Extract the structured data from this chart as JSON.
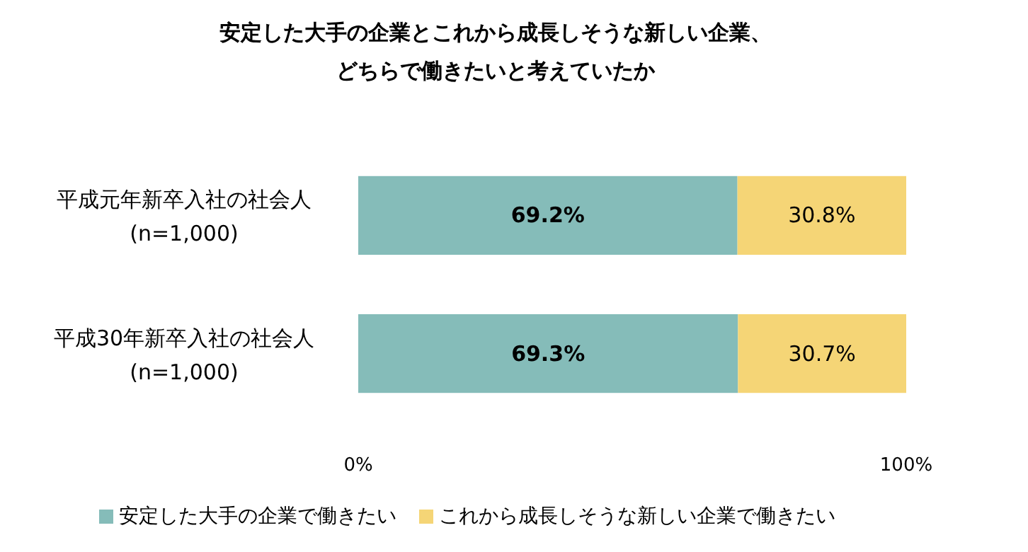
{
  "chart_data": {
    "type": "bar",
    "orientation": "horizontal",
    "stacked": true,
    "title": "安定した大手の企業とこれから成長しそうな新しい企業、どちらで働きたいと考えていたか",
    "categories": [
      "平成元年新卒入社の社会人\n(n=1,000)",
      "平成30年新卒入社の社会人\n(n=1,000)"
    ],
    "series": [
      {
        "name": "安定した大手の企業で働きたい",
        "color": "#85bcb9",
        "values": [
          69.2,
          69.3
        ],
        "value_labels": [
          "69.2%",
          "69.3%"
        ]
      },
      {
        "name": "これから成長しそうな新しい企業で働きたい",
        "color": "#f5d576",
        "values": [
          30.8,
          30.7
        ],
        "value_labels": [
          "30.8%",
          "30.7%"
        ]
      }
    ],
    "xlim": [
      0,
      100
    ],
    "xticks": [
      {
        "value": 0,
        "label": "0%"
      },
      {
        "value": 100,
        "label": "100%"
      }
    ],
    "grid": false,
    "legend": "bottom"
  }
}
